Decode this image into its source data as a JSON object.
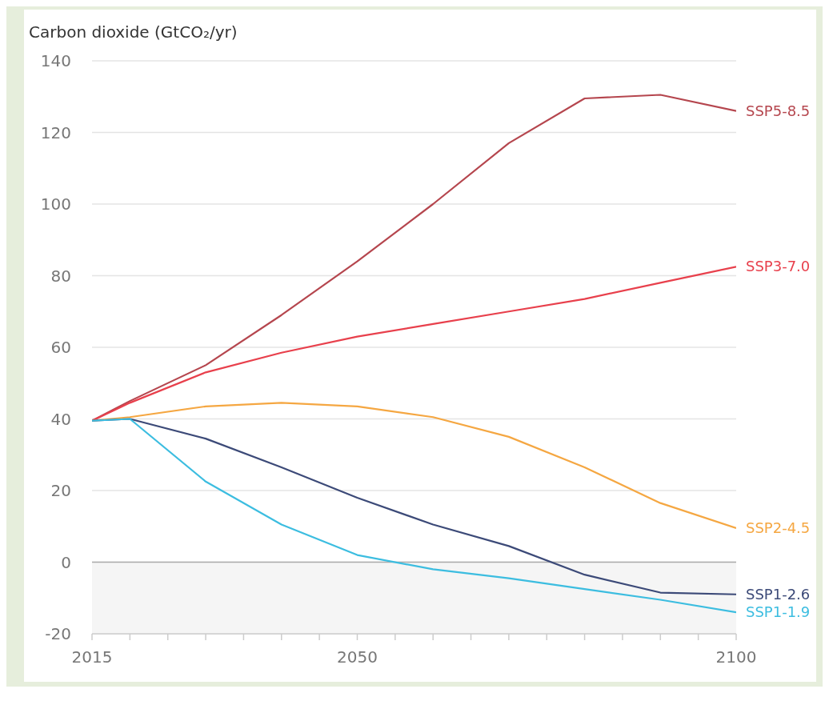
{
  "chart_data": {
    "type": "line",
    "ylabel": "Carbon dioxide (GtCO₂/yr)",
    "x": [
      2015,
      2020,
      2030,
      2040,
      2050,
      2060,
      2070,
      2080,
      2090,
      2100
    ],
    "series": [
      {
        "name": "SSP5-8.5",
        "color": "#b5464e",
        "values": [
          39.5,
          45,
          55,
          69,
          84,
          100,
          117,
          129.5,
          130.5,
          126
        ]
      },
      {
        "name": "SSP3-7.0",
        "color": "#e8404c",
        "values": [
          39.5,
          44.5,
          53,
          58.5,
          63,
          66.5,
          70,
          73.5,
          78,
          82.5
        ]
      },
      {
        "name": "SSP2-4.5",
        "color": "#f5a742",
        "values": [
          39.5,
          40.5,
          43.5,
          44.5,
          43.5,
          40.5,
          35,
          26.5,
          16.5,
          9.5
        ]
      },
      {
        "name": "SSP1-2.6",
        "color": "#3c4a78",
        "values": [
          39.5,
          40,
          34.5,
          26.5,
          18,
          10.5,
          4.5,
          -3.5,
          -8.5,
          -9
        ]
      },
      {
        "name": "SSP1-1.9",
        "color": "#3cbde0",
        "values": [
          39.5,
          40,
          22.5,
          10.5,
          2,
          -2,
          -4.5,
          -7.5,
          -10.5,
          -14
        ]
      }
    ],
    "xlim": [
      2015,
      2100
    ],
    "xticks": [
      2015,
      {
        "value": 2020,
        "label": null
      },
      {
        "value": 2025,
        "label": null
      },
      {
        "value": 2030,
        "label": null
      },
      {
        "value": 2035,
        "label": null
      },
      {
        "value": 2040,
        "label": null
      },
      {
        "value": 2045,
        "label": null
      },
      2050,
      {
        "value": 2055,
        "label": null
      },
      {
        "value": 2060,
        "label": null
      },
      {
        "value": 2065,
        "label": null
      },
      {
        "value": 2070,
        "label": null
      },
      {
        "value": 2075,
        "label": null
      },
      {
        "value": 2080,
        "label": null
      },
      {
        "value": 2085,
        "label": null
      },
      {
        "value": 2090,
        "label": null
      },
      {
        "value": 2095,
        "label": null
      },
      2100
    ],
    "ylim": [
      -20,
      140
    ],
    "yticks": [
      -20,
      0,
      20,
      40,
      60,
      80,
      100,
      120,
      140
    ],
    "bands": [
      {
        "axis": "y",
        "from": -20,
        "to": 0,
        "color": "#f5f5f5"
      }
    ],
    "ref_lines": [
      {
        "axis": "y",
        "value": 0,
        "color": "#aaaaaa"
      }
    ],
    "grid": "y",
    "legend": false,
    "marker": "none",
    "line_style": "solid"
  }
}
